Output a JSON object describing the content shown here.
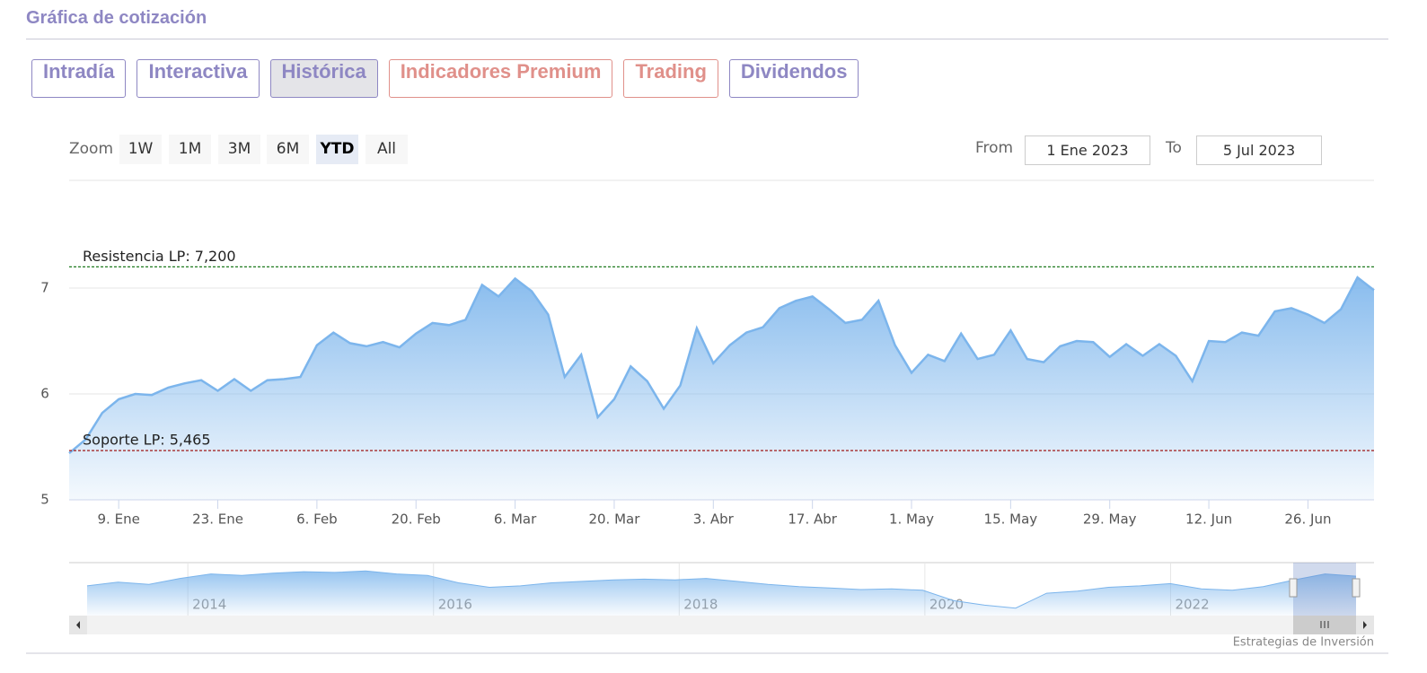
{
  "header": {
    "title": "Gráfica de cotización"
  },
  "tabs": [
    "Intradía",
    "Interactiva",
    "Histórica",
    "Indicadores Premium",
    "Trading",
    "Dividendos"
  ],
  "range_selector": {
    "zoom_label": "Zoom",
    "buttons": [
      "1W",
      "1M",
      "3M",
      "6M",
      "YTD",
      "All"
    ],
    "from_label": "From",
    "from": "1 Ene 2023",
    "to_label": "To",
    "to": "5 Jul 2023"
  },
  "chart_data": {
    "type": "area",
    "color": "#7cb5ec",
    "categories": [
      null,
      null,
      null,
      "9. Ene",
      null,
      null,
      null,
      null,
      null,
      "23. Ene",
      null,
      null,
      null,
      null,
      null,
      "6. Feb",
      null,
      null,
      null,
      null,
      null,
      "20. Feb",
      null,
      null,
      null,
      null,
      null,
      "6. Mar",
      null,
      null,
      null,
      null,
      null,
      "20. Mar",
      null,
      null,
      null,
      null,
      null,
      "3. Abr",
      null,
      null,
      null,
      null,
      null,
      "17. Abr",
      null,
      null,
      null,
      null,
      null,
      "1. May",
      null,
      null,
      null,
      null,
      null,
      "15. May",
      null,
      null,
      null,
      null,
      null,
      "29. May",
      null,
      null,
      null,
      null,
      null,
      "12. Jun",
      null,
      null,
      null,
      null,
      null,
      "26. Jun",
      null,
      null,
      null,
      null
    ],
    "values": [
      5.44,
      5.57,
      5.82,
      5.95,
      6.0,
      5.99,
      6.06,
      6.1,
      6.13,
      6.03,
      6.14,
      6.03,
      6.13,
      6.14,
      6.16,
      6.46,
      6.58,
      6.48,
      6.45,
      6.49,
      6.44,
      6.57,
      6.67,
      6.65,
      6.7,
      7.03,
      6.92,
      7.09,
      6.97,
      6.75,
      6.16,
      6.37,
      5.78,
      5.95,
      6.26,
      6.12,
      5.86,
      6.08,
      6.62,
      6.29,
      6.46,
      6.58,
      6.63,
      6.81,
      6.88,
      6.92,
      6.8,
      6.67,
      6.7,
      6.88,
      6.46,
      6.2,
      6.37,
      6.31,
      6.57,
      6.33,
      6.37,
      6.6,
      6.33,
      6.3,
      6.45,
      6.5,
      6.49,
      6.35,
      6.47,
      6.36,
      6.47,
      6.36,
      6.12,
      6.5,
      6.49,
      6.58,
      6.55,
      6.78,
      6.81,
      6.75,
      6.67,
      6.8,
      7.1,
      6.98
    ],
    "ylim": [
      5,
      8
    ],
    "yticks": [
      5,
      6,
      7
    ],
    "grid": true,
    "annotations": [
      {
        "label": "Resistencia LP: 7,200",
        "value": 7.2,
        "color": "#1f7a1f"
      },
      {
        "label": "Soporte LP: 5,465",
        "value": 5.465,
        "color": "#a01818"
      }
    ],
    "navigator": {
      "xlim": [
        2013.18,
        2023.51
      ],
      "xticks": [
        2014,
        2016,
        2018,
        2020,
        2022
      ],
      "ylim": [
        2,
        9
      ],
      "values": [
        6.0,
        6.5,
        6.2,
        7.0,
        7.6,
        7.4,
        7.7,
        7.9,
        7.8,
        8.0,
        7.6,
        7.4,
        6.4,
        5.8,
        6.0,
        6.4,
        6.6,
        6.8,
        6.9,
        6.8,
        7.0,
        6.6,
        6.2,
        5.9,
        5.7,
        5.5,
        5.6,
        5.4,
        4.0,
        3.4,
        3.0,
        5.0,
        5.3,
        5.8,
        6.0,
        6.3,
        5.6,
        5.4,
        5.9,
        6.8,
        7.6,
        7.3
      ]
    },
    "credit": "Estrategias de Inversión"
  }
}
